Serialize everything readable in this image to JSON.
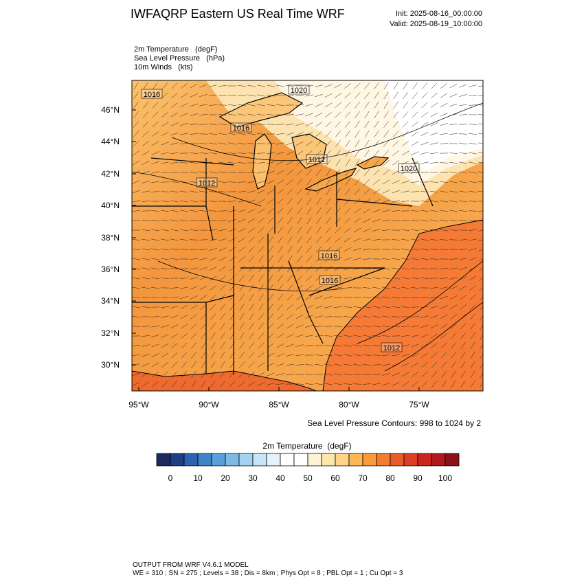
{
  "header": {
    "title": "IWFAQRP Eastern US Real Time WRF",
    "init": "Init: 2025-08-16_00:00:00",
    "valid": "Valid: 2025-08-19_10:00:00"
  },
  "fields": [
    "2m Temperature   (degF)",
    "Sea Level Pressure   (hPa)",
    "10m Winds   (kts)"
  ],
  "map": {
    "lat_labels": [
      "46°N",
      "44°N",
      "42°N",
      "40°N",
      "38°N",
      "36°N",
      "34°N",
      "32°N",
      "30°N"
    ],
    "lon_labels": [
      "95°W",
      "90°W",
      "85°W",
      "80°W",
      "75°W"
    ],
    "contour_labels": [
      "1016",
      "1020",
      "1016",
      "1012",
      "1020",
      "1012",
      "1016",
      "1016",
      "1012"
    ]
  },
  "contour_note": "Sea Level Pressure Contours: 998 to 1024 by 2",
  "colorbar": {
    "title": "2m Temperature  (degF)",
    "colors": [
      "#1a2a5e",
      "#1f3f85",
      "#2c62b0",
      "#3f82c6",
      "#5aa0d8",
      "#7cbbe6",
      "#a4d3f1",
      "#c8e5f7",
      "#e4f2fb",
      "#ffffff",
      "#ffffff",
      "#fff3d6",
      "#fee6ac",
      "#fed588",
      "#fdb756",
      "#f99b3c",
      "#f27d2e",
      "#e85c27",
      "#dc3f25",
      "#c82523",
      "#ae1a1e",
      "#8c1219"
    ],
    "ticks": [
      0,
      10,
      20,
      30,
      40,
      50,
      60,
      70,
      80,
      90,
      100
    ]
  },
  "footer": [
    "OUTPUT FROM WRF V4.6.1 MODEL",
    "WE = 310 ; SN = 275 ; Levels = 38 ; Dis = 8km ; Phys Opt = 8 ; PBL Opt = 1 ; Cu Opt = 3"
  ]
}
